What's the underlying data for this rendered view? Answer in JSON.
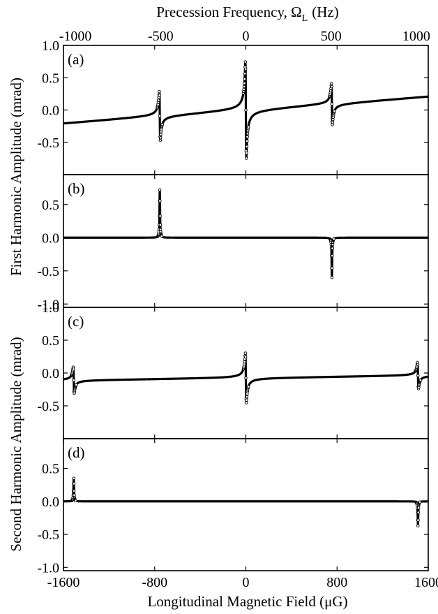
{
  "figure": {
    "top_axis_label": "Precession Frequency, Ω",
    "top_axis_label_sub": "L",
    "top_axis_label_unit": "(Hz)",
    "top_ticks": [
      "-1000",
      "-500",
      "0",
      "500",
      "1000"
    ],
    "top_tick_values": [
      -1000,
      -500,
      0,
      500,
      1000
    ],
    "x_label": "Longitudinal Magnetic Field (μG)",
    "x_ticks": [
      "-1600",
      "-800",
      "0",
      "800",
      "1600"
    ],
    "x_tick_values": [
      -1600,
      -800,
      0,
      800,
      1600
    ],
    "ylabel_upper": "First Harmonic Amplitude (mrad)",
    "ylabel_lower": "Second Harmonic Amplitude (mrad)",
    "xlim": [
      -1600,
      1600
    ]
  },
  "chart_data": [
    {
      "type": "line",
      "panel_label": "(a)",
      "xlim": [
        -1600,
        1600
      ],
      "ylim": [
        -1.0,
        1.0
      ],
      "y_ticks": [
        "1.0",
        "0.5",
        "0.0",
        "-0.5"
      ],
      "y_tick_values": [
        1.0,
        0.5,
        0.0,
        -0.5
      ],
      "baseline": {
        "slope": 0.000135,
        "offset": 0.0
      },
      "resonances": [
        {
          "x": -755,
          "amp": 0.38,
          "width": 4,
          "kind": "dispersive"
        },
        {
          "x": 0,
          "amp": 0.75,
          "width": 4,
          "kind": "dispersive"
        },
        {
          "x": 755,
          "amp": 0.32,
          "width": 4,
          "kind": "dispersive"
        }
      ]
    },
    {
      "type": "line",
      "panel_label": "(b)",
      "xlim": [
        -1600,
        1600
      ],
      "ylim": [
        -1.05,
        0.95
      ],
      "y_ticks": [
        "0.5",
        "0.0",
        "-0.5",
        "-1.0"
      ],
      "y_tick_values": [
        0.5,
        0.0,
        -0.5,
        -1.0
      ],
      "baseline": {
        "slope": 0.0,
        "offset": 0.0
      },
      "resonances": [
        {
          "x": -755,
          "amp": 0.72,
          "width": 3,
          "kind": "absorptive"
        },
        {
          "x": 755,
          "amp": -0.6,
          "width": 3,
          "kind": "absorptive"
        }
      ]
    },
    {
      "type": "line",
      "panel_label": "(c)",
      "xlim": [
        -1600,
        1600
      ],
      "ylim": [
        -1.0,
        1.0
      ],
      "y_ticks": [
        "1.0",
        "0.5",
        "0.0",
        "-0.5"
      ],
      "y_tick_values": [
        1.0,
        0.5,
        0.0,
        -0.5
      ],
      "baseline": {
        "slope": 2.5e-05,
        "offset": -0.075
      },
      "resonances": [
        {
          "x": -1510,
          "amp": 0.2,
          "width": 4,
          "kind": "dispersive"
        },
        {
          "x": 0,
          "amp": 0.38,
          "width": 4,
          "kind": "dispersive"
        },
        {
          "x": 1510,
          "amp": 0.2,
          "width": 4,
          "kind": "dispersive"
        }
      ]
    },
    {
      "type": "line",
      "panel_label": "(d)",
      "xlim": [
        -1600,
        1600
      ],
      "ylim": [
        -1.05,
        0.95
      ],
      "y_ticks": [
        "0.5",
        "0.0",
        "-0.5",
        "-1.0"
      ],
      "y_tick_values": [
        0.5,
        0.0,
        -0.5,
        -1.0
      ],
      "baseline": {
        "slope": 0.0,
        "offset": 0.0
      },
      "resonances": [
        {
          "x": -1510,
          "amp": 0.35,
          "width": 3,
          "kind": "absorptive"
        },
        {
          "x": 1510,
          "amp": -0.37,
          "width": 3,
          "kind": "absorptive"
        }
      ]
    }
  ]
}
